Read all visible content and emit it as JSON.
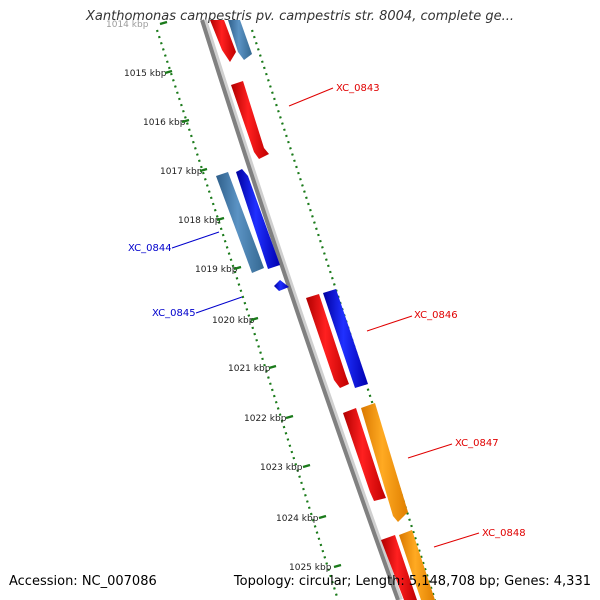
{
  "title": "Xanthomonas campestris pv. campestris str. 8004, complete ge...",
  "footer": {
    "accession": "Accession: NC_007086",
    "summary": "Topology: circular; Length: 5,148,708 bp; Genes: 4,331"
  },
  "kbp_ticks": [
    "1014 kbp",
    "1015 kbp",
    "1016 kbp",
    "1017 kbp",
    "1018 kbp",
    "1019 kbp",
    "1020 kbp",
    "1021 kbp",
    "1022 kbp",
    "1023 kbp",
    "1024 kbp",
    "1025 kbp"
  ],
  "gene_labels": [
    {
      "name": "XC_0843",
      "strand": "forward"
    },
    {
      "name": "XC_0844",
      "strand": "reverse"
    },
    {
      "name": "XC_0845",
      "strand": "reverse"
    },
    {
      "name": "XC_0846",
      "strand": "forward"
    },
    {
      "name": "XC_0847",
      "strand": "forward"
    },
    {
      "name": "XC_0848",
      "strand": "forward"
    }
  ],
  "colors": {
    "forward_label": "#e00000",
    "reverse_label": "#0000cc",
    "cds_red": "#ff0000",
    "cds_blue": "#0000ff",
    "cds_steel": "#4682b4",
    "cds_orange": "#ff9900",
    "backbone": "#808080",
    "gc_ticks": "#1a7a1a"
  }
}
